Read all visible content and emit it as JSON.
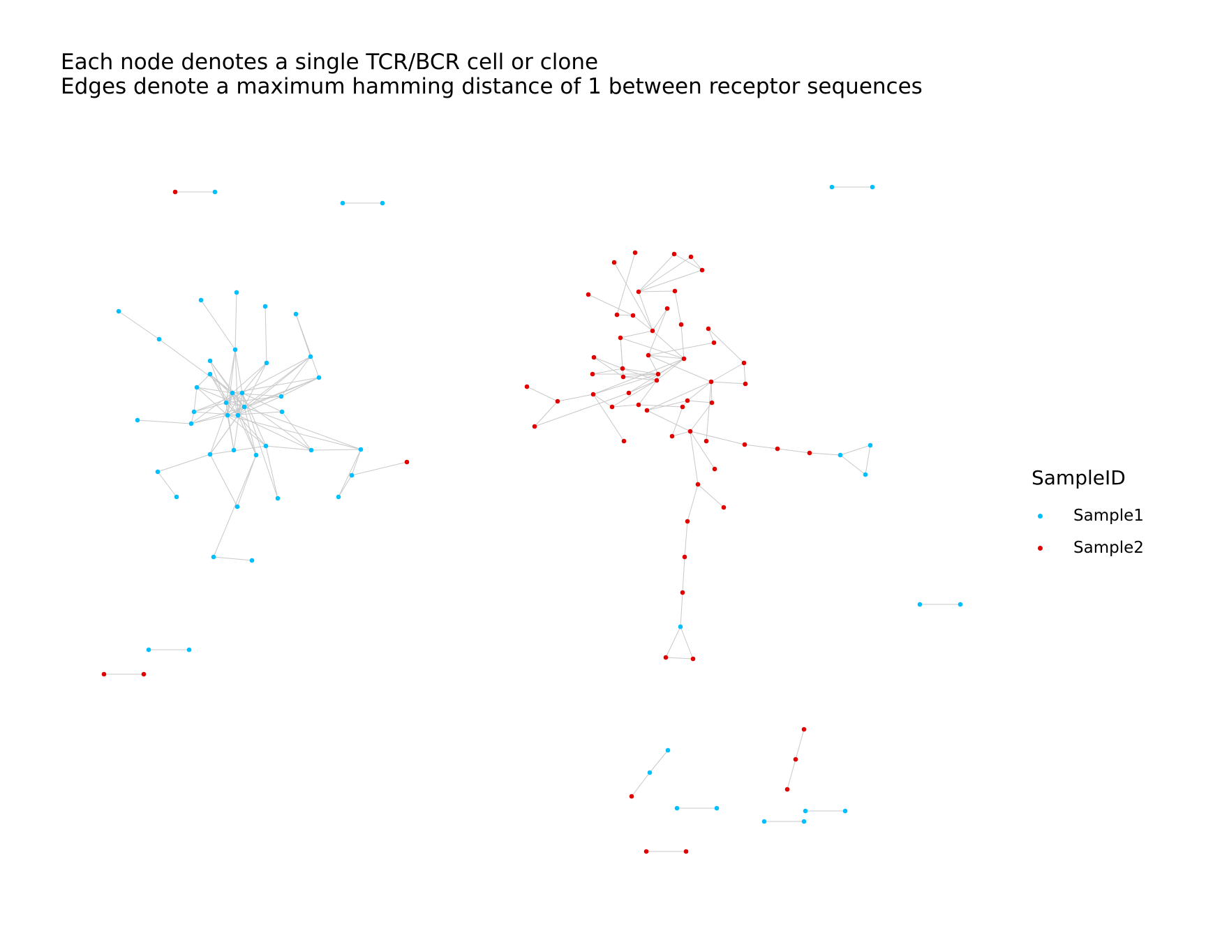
{
  "title": {
    "line1": "Each node denotes a single TCR/BCR cell or clone",
    "line2": "Edges denote a maximum hamming distance of 1 between receptor sequences"
  },
  "legend": {
    "title": "SampleID",
    "items": [
      {
        "label": "Sample1",
        "color": "#00BFFF"
      },
      {
        "label": "Sample2",
        "color": "#E00000"
      }
    ]
  },
  "colors": {
    "sample1": "#00BFFF",
    "sample2": "#E00000",
    "edge": "#C8C8C8",
    "background": "#FFFFFF"
  }
}
